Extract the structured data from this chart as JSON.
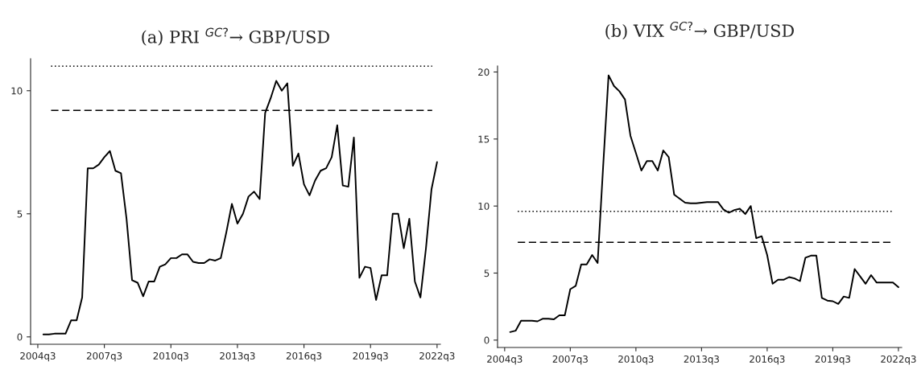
{
  "chart_data": [
    {
      "type": "line",
      "title": "(a) PRI $^{GC?}$→ GBP/USD",
      "categories": [
        "2004q3",
        null,
        null,
        null,
        null,
        null,
        null,
        null,
        null,
        null,
        null,
        null,
        "2007q3",
        null,
        null,
        null,
        null,
        null,
        null,
        null,
        null,
        null,
        null,
        null,
        "2010q3",
        null,
        null,
        null,
        null,
        null,
        null,
        null,
        null,
        null,
        null,
        null,
        "2013q3",
        null,
        null,
        null,
        null,
        null,
        null,
        null,
        null,
        null,
        null,
        null,
        "2016q3",
        null,
        null,
        null,
        null,
        null,
        null,
        null,
        null,
        null,
        null,
        null,
        "2019q3",
        null,
        null,
        null,
        null,
        null,
        null,
        null,
        null,
        null,
        null,
        null,
        "2022q3"
      ],
      "series": [
        {
          "color": "#000000",
          "values": [
            null,
            0.1,
            0.1,
            0.13,
            0.13,
            0.13,
            0.67,
            0.67,
            1.6,
            6.85,
            6.85,
            7.0,
            7.3,
            7.55,
            6.75,
            6.65,
            4.8,
            2.3,
            2.2,
            1.65,
            2.25,
            2.25,
            2.85,
            2.95,
            3.2,
            3.2,
            3.35,
            3.35,
            3.05,
            3.0,
            3.0,
            3.15,
            3.1,
            3.2,
            4.25,
            5.4,
            4.6,
            5.0,
            5.7,
            5.9,
            5.6,
            9.1,
            9.7,
            10.4,
            10.0,
            10.3,
            6.95,
            7.45,
            6.2,
            5.75,
            6.35,
            6.75,
            6.85,
            7.3,
            8.6,
            6.15,
            6.1,
            8.1,
            2.4,
            2.85,
            2.8,
            1.5,
            2.5,
            2.5,
            5.0,
            5.0,
            3.6,
            4.8,
            2.25,
            1.6,
            3.6,
            6.0,
            7.1
          ]
        }
      ],
      "ylim": [
        -0.3,
        11.3
      ],
      "yticks": [
        0,
        5,
        10
      ],
      "ref_lines": [
        {
          "axis": "y",
          "value": 11.0,
          "line_style": "dotted",
          "color": "#000000"
        },
        {
          "axis": "y",
          "value": 9.2,
          "line_style": "dashed",
          "color": "#000000"
        }
      ],
      "grid": false,
      "legend": false,
      "marker": "none",
      "line_style": "solid"
    },
    {
      "type": "line",
      "title": "(b) VIX $^{GC?}$→ GBP/USD",
      "categories": [
        "2004q3",
        null,
        null,
        null,
        null,
        null,
        null,
        null,
        null,
        null,
        null,
        null,
        "2007q3",
        null,
        null,
        null,
        null,
        null,
        null,
        null,
        null,
        null,
        null,
        null,
        "2010q3",
        null,
        null,
        null,
        null,
        null,
        null,
        null,
        null,
        null,
        null,
        null,
        "2013q3",
        null,
        null,
        null,
        null,
        null,
        null,
        null,
        null,
        null,
        null,
        null,
        "2016q3",
        null,
        null,
        null,
        null,
        null,
        null,
        null,
        null,
        null,
        null,
        null,
        "2019q3",
        null,
        null,
        null,
        null,
        null,
        null,
        null,
        null,
        null,
        null,
        null,
        "2022q3"
      ],
      "series": [
        {
          "color": "#000000",
          "values": [
            null,
            0.6,
            0.7,
            1.45,
            1.45,
            1.45,
            1.4,
            1.6,
            1.6,
            1.55,
            1.85,
            1.85,
            3.8,
            4.05,
            5.65,
            5.65,
            6.35,
            5.75,
            12.9,
            19.75,
            18.95,
            18.55,
            17.95,
            15.25,
            13.95,
            12.65,
            13.35,
            13.35,
            12.65,
            14.15,
            13.65,
            10.85,
            10.55,
            10.25,
            10.2,
            10.2,
            10.25,
            10.3,
            10.3,
            10.3,
            9.75,
            9.5,
            9.7,
            9.8,
            9.4,
            10.0,
            7.6,
            7.75,
            6.35,
            4.2,
            4.5,
            4.5,
            4.7,
            4.6,
            4.4,
            6.15,
            6.3,
            6.3,
            3.15,
            2.95,
            2.9,
            2.7,
            3.25,
            3.15,
            5.3,
            4.75,
            4.2,
            4.85,
            4.3,
            4.3,
            4.3,
            4.3,
            3.95
          ]
        }
      ],
      "ylim": [
        -0.55,
        20.45
      ],
      "yticks": [
        0,
        5,
        10,
        15,
        20
      ],
      "ref_lines": [
        {
          "axis": "y",
          "value": 9.6,
          "line_style": "dotted",
          "color": "#000000"
        },
        {
          "axis": "y",
          "value": 7.3,
          "line_style": "dashed",
          "color": "#000000"
        }
      ],
      "grid": false,
      "legend": false,
      "marker": "none",
      "line_style": "solid"
    }
  ]
}
